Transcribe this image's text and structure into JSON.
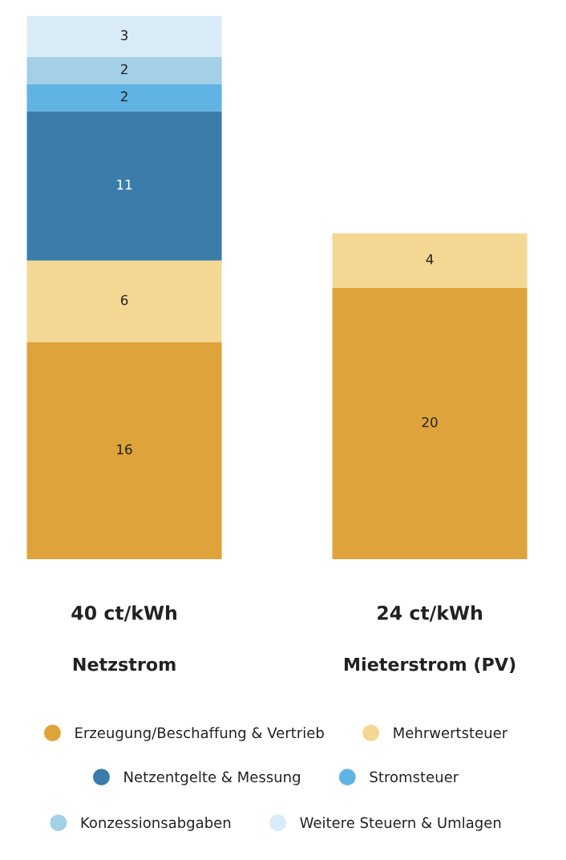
{
  "chart_data": {
    "type": "bar",
    "stacked": true,
    "categories": [
      "Netzstrom",
      "Mieterstrom (PV)"
    ],
    "series": [
      {
        "name": "Erzeugung/Beschaffung & Vertrieb",
        "color": "#dfa33b",
        "values": [
          16,
          20
        ]
      },
      {
        "name": "Mehrwertsteuer",
        "color": "#f5d794",
        "values": [
          6,
          4
        ]
      },
      {
        "name": "Netzentgelte & Messung",
        "color": "#3a7dab",
        "values": [
          11,
          null
        ]
      },
      {
        "name": "Stromsteuer",
        "color": "#60b4e4",
        "values": [
          2,
          null
        ]
      },
      {
        "name": "Konzessionsabgaben",
        "color": "#a3cfe7",
        "values": [
          2,
          null
        ]
      },
      {
        "name": "Weitere Steuern & Umlagen",
        "color": "#d8ebf7",
        "values": [
          3,
          null
        ]
      }
    ],
    "data_labels": true,
    "totals": [
      "40 ct/kWh",
      "24 ct/kWh"
    ],
    "legend": "bottom",
    "tick_labels": "x"
  }
}
